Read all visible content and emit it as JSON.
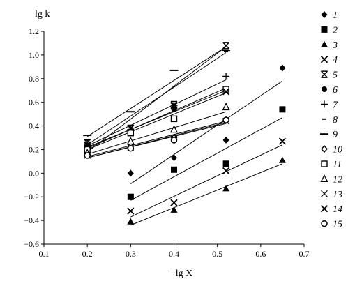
{
  "chart_data": {
    "type": "scatter",
    "title": "",
    "ylabel": "lg k",
    "xlabel": "−lg X",
    "xlim": [
      0.1,
      0.7
    ],
    "ylim": [
      -0.6,
      1.2
    ],
    "xticks": [
      "0.1",
      "0.2",
      "0.3",
      "0.4",
      "0.5",
      "0.6",
      "0.7"
    ],
    "yticks": [
      "−0.6",
      "−0.4",
      "−0.2",
      "0.0",
      "0.2",
      "0.4",
      "0.6",
      "0.8",
      "1.0",
      "1.2"
    ],
    "grid": false,
    "legend_position": "right",
    "series": [
      {
        "name": "1",
        "marker": "diamond-filled",
        "points": [
          [
            0.3,
            0.0
          ],
          [
            0.4,
            0.13
          ],
          [
            0.52,
            0.28
          ],
          [
            0.65,
            0.89
          ]
        ],
        "fit": [
          [
            0.3,
            -0.09
          ],
          [
            0.65,
            0.78
          ]
        ]
      },
      {
        "name": "2",
        "marker": "square-filled",
        "points": [
          [
            0.3,
            -0.2
          ],
          [
            0.4,
            0.03
          ],
          [
            0.52,
            0.08
          ],
          [
            0.65,
            0.54
          ]
        ],
        "fit": [
          [
            0.3,
            -0.23
          ],
          [
            0.65,
            0.47
          ]
        ]
      },
      {
        "name": "3",
        "marker": "triangle-filled",
        "points": [
          [
            0.3,
            -0.41
          ],
          [
            0.4,
            -0.31
          ],
          [
            0.52,
            -0.13
          ],
          [
            0.65,
            0.11
          ]
        ],
        "fit": [
          [
            0.3,
            -0.44
          ],
          [
            0.65,
            0.08
          ]
        ]
      },
      {
        "name": "4",
        "marker": "x",
        "points": [
          [
            0.3,
            -0.32
          ],
          [
            0.4,
            -0.25
          ],
          [
            0.52,
            0.02
          ],
          [
            0.65,
            0.27
          ]
        ],
        "fit": [
          [
            0.3,
            -0.37
          ],
          [
            0.65,
            0.24
          ]
        ]
      },
      {
        "name": "5",
        "marker": "x-bar",
        "points": [
          [
            0.2,
            0.26
          ],
          [
            0.3,
            0.38
          ],
          [
            0.4,
            0.58
          ],
          [
            0.52,
            1.08
          ]
        ],
        "fit": [
          [
            0.2,
            0.18
          ],
          [
            0.52,
            1.07
          ]
        ]
      },
      {
        "name": "6",
        "marker": "circle-filled",
        "points": [
          [
            0.2,
            0.22
          ],
          [
            0.3,
            0.35
          ],
          [
            0.4,
            0.54
          ],
          [
            0.52,
            0.7
          ]
        ],
        "fit": [
          [
            0.2,
            0.21
          ],
          [
            0.52,
            0.72
          ]
        ]
      },
      {
        "name": "7",
        "marker": "plus",
        "points": [
          [
            0.2,
            0.25
          ],
          [
            0.3,
            0.37
          ],
          [
            0.4,
            0.57
          ],
          [
            0.52,
            0.82
          ]
        ],
        "fit": [
          [
            0.2,
            0.23
          ],
          [
            0.52,
            0.79
          ]
        ]
      },
      {
        "name": "8",
        "marker": "dash-short",
        "points": [
          [
            0.2,
            0.28
          ],
          [
            0.3,
            0.37
          ],
          [
            0.4,
            0.55
          ],
          [
            0.52,
            1.03
          ]
        ],
        "fit": [
          [
            0.2,
            0.24
          ],
          [
            0.52,
            1.02
          ]
        ]
      },
      {
        "name": "9",
        "marker": "dash",
        "points": [
          [
            0.2,
            0.32
          ],
          [
            0.3,
            0.52
          ],
          [
            0.4,
            0.87
          ],
          [
            0.52,
            1.04
          ]
        ],
        "fit": [
          [
            0.2,
            0.31
          ],
          [
            0.52,
            1.07
          ]
        ]
      },
      {
        "name": "10",
        "marker": "diamond-open",
        "points": [
          [
            0.2,
            0.16
          ],
          [
            0.3,
            0.23
          ],
          [
            0.4,
            0.3
          ],
          [
            0.52,
            0.45
          ]
        ],
        "fit": [
          [
            0.2,
            0.14
          ],
          [
            0.52,
            0.44
          ]
        ]
      },
      {
        "name": "11",
        "marker": "square-open",
        "points": [
          [
            0.2,
            0.2
          ],
          [
            0.3,
            0.34
          ],
          [
            0.4,
            0.46
          ],
          [
            0.52,
            0.71
          ]
        ],
        "fit": [
          [
            0.2,
            0.2
          ],
          [
            0.52,
            0.68
          ]
        ]
      },
      {
        "name": "12",
        "marker": "triangle-open",
        "points": [
          [
            0.2,
            0.17
          ],
          [
            0.3,
            0.27
          ],
          [
            0.4,
            0.37
          ],
          [
            0.52,
            0.56
          ]
        ],
        "fit": [
          [
            0.2,
            0.16
          ],
          [
            0.52,
            0.52
          ]
        ]
      },
      {
        "name": "13",
        "marker": "x-thin",
        "points": [
          [
            0.2,
            0.15
          ],
          [
            0.3,
            0.22
          ],
          [
            0.4,
            0.29
          ],
          [
            0.52,
            0.44
          ]
        ],
        "fit": [
          [
            0.2,
            0.13
          ],
          [
            0.52,
            0.42
          ]
        ]
      },
      {
        "name": "14",
        "marker": "x",
        "points": [
          [
            0.2,
            0.24
          ],
          [
            0.3,
            0.38
          ],
          [
            0.4,
            0.57
          ],
          [
            0.52,
            0.69
          ]
        ],
        "fit": [
          [
            0.2,
            0.22
          ],
          [
            0.52,
            0.7
          ]
        ]
      },
      {
        "name": "15",
        "marker": "circle-open",
        "points": [
          [
            0.2,
            0.15
          ],
          [
            0.3,
            0.21
          ],
          [
            0.4,
            0.28
          ],
          [
            0.52,
            0.45
          ]
        ],
        "fit": [
          [
            0.2,
            0.13
          ],
          [
            0.52,
            0.43
          ]
        ]
      }
    ]
  }
}
